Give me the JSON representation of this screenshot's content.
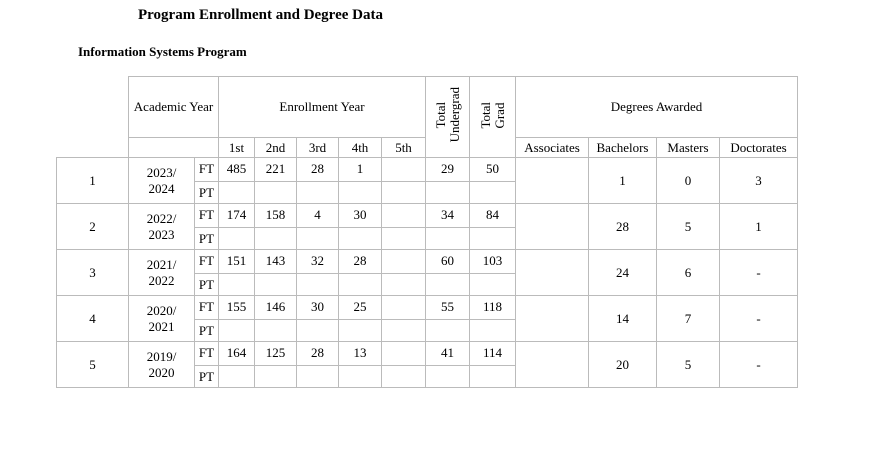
{
  "title": "Program Enrollment and Degree Data",
  "subtitle": "Information Systems Program",
  "headers": {
    "academic_year": "Academic Year",
    "enrollment_year": "Enrollment Year",
    "total_undergrad_1": "Total",
    "total_undergrad_2": "Undergrad",
    "total_grad_1": "Total",
    "total_grad_2": "Grad",
    "degrees_awarded": "Degrees Awarded",
    "years": [
      "1st",
      "2nd",
      "3rd",
      "4th",
      "5th"
    ],
    "degrees": [
      "Associates",
      "Bachelors",
      "Masters",
      "Doctorates"
    ]
  },
  "rows": [
    {
      "num": "1",
      "year_a": "2023/",
      "year_b": "2024",
      "ft": "FT",
      "pt": "PT",
      "enroll": [
        "485",
        "221",
        "28",
        "1",
        ""
      ],
      "undergrad": "29",
      "grad": "50",
      "degrees": [
        "",
        "1",
        "0",
        "3"
      ]
    },
    {
      "num": "2",
      "year_a": "2022/",
      "year_b": "2023",
      "ft": "FT",
      "pt": "PT",
      "enroll": [
        "174",
        "158",
        "4",
        "30",
        ""
      ],
      "undergrad": "34",
      "grad": "84",
      "degrees": [
        "",
        "28",
        "5",
        "1"
      ]
    },
    {
      "num": "3",
      "year_a": "2021/",
      "year_b": "2022",
      "ft": "FT",
      "pt": "PT",
      "enroll": [
        "151",
        "143",
        "32",
        "28",
        ""
      ],
      "undergrad": "60",
      "grad": "103",
      "degrees": [
        "",
        "24",
        "6",
        "-"
      ]
    },
    {
      "num": "4",
      "year_a": "2020/",
      "year_b": "2021",
      "ft": "FT",
      "pt": "PT",
      "enroll": [
        "155",
        "146",
        "30",
        "25",
        ""
      ],
      "undergrad": "55",
      "grad": "118",
      "degrees": [
        "",
        "14",
        "7",
        "-"
      ]
    },
    {
      "num": "5",
      "year_a": "2019/",
      "year_b": "2020",
      "ft": "FT",
      "pt": "PT",
      "enroll": [
        "164",
        "125",
        "28",
        "13",
        ""
      ],
      "undergrad": "41",
      "grad": "114",
      "degrees": [
        "",
        "20",
        "5",
        "-"
      ]
    }
  ]
}
